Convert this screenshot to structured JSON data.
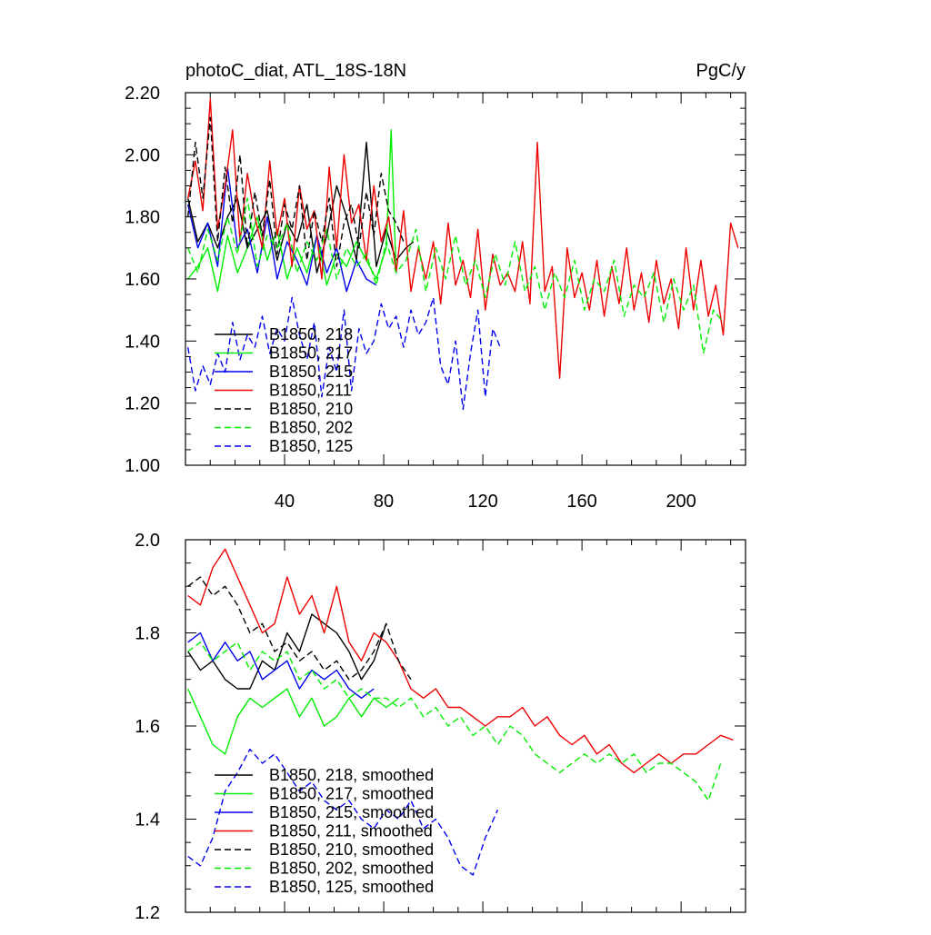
{
  "chart_data": [
    {
      "type": "line",
      "title_left": "photoC_diat, ATL_18S-18N",
      "title_right": "PgC/y",
      "xlim": [
        0,
        226
      ],
      "ylim": [
        1.0,
        2.2
      ],
      "xticks": [
        "40",
        "80",
        "120",
        "160",
        "200"
      ],
      "yticks": [
        "1.00",
        "1.20",
        "1.40",
        "1.60",
        "1.80",
        "2.00",
        "2.20"
      ],
      "legend_position": "lower-left",
      "series": [
        {
          "name": "B1850, 218",
          "color": "#000000",
          "dash": "solid",
          "x": [
            1,
            5,
            9,
            13,
            17,
            21,
            25,
            29,
            33,
            37,
            41,
            45,
            49,
            53,
            57,
            61,
            65,
            69,
            73,
            77,
            81,
            85,
            89,
            92
          ],
          "values": [
            1.86,
            1.72,
            1.78,
            1.7,
            1.8,
            1.86,
            1.7,
            1.76,
            1.82,
            1.66,
            1.78,
            1.72,
            1.84,
            1.62,
            1.74,
            1.9,
            1.8,
            1.66,
            2.04,
            1.64,
            1.76,
            1.66,
            1.7,
            1.72
          ]
        },
        {
          "name": "B1850, 217",
          "color": "#00ee00",
          "dash": "solid",
          "x": [
            1,
            5,
            9,
            13,
            17,
            21,
            25,
            29,
            33,
            37,
            41,
            45,
            49,
            53,
            57,
            61,
            65,
            69,
            73,
            77,
            81,
            83,
            85
          ],
          "values": [
            1.6,
            1.64,
            1.7,
            1.56,
            1.74,
            1.62,
            1.7,
            1.8,
            1.66,
            1.76,
            1.6,
            1.7,
            1.62,
            1.74,
            1.58,
            1.68,
            1.64,
            1.72,
            1.66,
            1.6,
            1.7,
            2.08,
            1.62
          ]
        },
        {
          "name": "B1850, 215",
          "color": "#0000ee",
          "dash": "solid",
          "x": [
            1,
            5,
            9,
            13,
            17,
            21,
            25,
            29,
            33,
            37,
            41,
            45,
            49,
            53,
            57,
            61,
            65,
            69,
            73,
            77
          ],
          "values": [
            1.84,
            1.7,
            1.78,
            1.64,
            1.96,
            1.7,
            1.76,
            1.62,
            1.8,
            1.6,
            1.72,
            1.66,
            1.58,
            1.74,
            1.62,
            1.7,
            1.56,
            1.66,
            1.6,
            1.58
          ]
        },
        {
          "name": "B1850, 211",
          "color": "#ee0000",
          "dash": "solid",
          "x": [
            1,
            4,
            7,
            10,
            13,
            16,
            19,
            22,
            25,
            28,
            31,
            34,
            37,
            40,
            43,
            46,
            49,
            52,
            55,
            58,
            61,
            64,
            67,
            70,
            73,
            76,
            79,
            82,
            85,
            88,
            91,
            94,
            97,
            100,
            103,
            106,
            109,
            112,
            115,
            118,
            121,
            124,
            127,
            130,
            133,
            136,
            139,
            142,
            145,
            148,
            151,
            154,
            157,
            160,
            163,
            166,
            169,
            172,
            175,
            178,
            181,
            184,
            187,
            190,
            193,
            196,
            199,
            202,
            205,
            208,
            211,
            214,
            217,
            220,
            223
          ],
          "values": [
            1.86,
            1.98,
            1.82,
            2.18,
            1.76,
            1.9,
            2.08,
            1.72,
            1.94,
            1.8,
            1.7,
            1.98,
            1.74,
            1.86,
            1.64,
            1.9,
            1.76,
            1.82,
            1.6,
            1.96,
            1.7,
            2.0,
            1.78,
            1.84,
            1.66,
            1.9,
            1.72,
            1.8,
            1.62,
            1.82,
            1.56,
            1.7,
            1.6,
            1.72,
            1.52,
            1.78,
            1.58,
            1.66,
            1.54,
            1.76,
            1.5,
            1.68,
            1.58,
            1.62,
            1.56,
            1.72,
            1.52,
            2.04,
            1.56,
            1.64,
            1.28,
            1.7,
            1.54,
            1.62,
            1.5,
            1.66,
            1.48,
            1.64,
            1.52,
            1.7,
            1.5,
            1.62,
            1.46,
            1.66,
            1.52,
            1.6,
            1.44,
            1.7,
            1.5,
            1.66,
            1.48,
            1.58,
            1.42,
            1.78,
            1.7
          ]
        },
        {
          "name": "B1850, 210",
          "color": "#000000",
          "dash": "dashed",
          "x": [
            1,
            4,
            7,
            10,
            13,
            16,
            19,
            22,
            25,
            28,
            31,
            34,
            37,
            40,
            43,
            46,
            49,
            52,
            55,
            58,
            61,
            64,
            67,
            70,
            73,
            76,
            79,
            82,
            85,
            88
          ],
          "values": [
            1.8,
            2.04,
            1.86,
            2.12,
            1.72,
            1.96,
            1.78,
            2.0,
            1.7,
            1.88,
            1.74,
            1.92,
            1.68,
            1.84,
            1.76,
            1.9,
            1.66,
            1.82,
            1.72,
            1.86,
            1.64,
            1.78,
            1.84,
            1.7,
            1.88,
            1.74,
            1.94,
            1.82,
            1.78,
            1.72
          ]
        },
        {
          "name": "B1850, 202",
          "color": "#00ee00",
          "dash": "dashed",
          "x": [
            1,
            5,
            9,
            13,
            17,
            21,
            25,
            29,
            33,
            37,
            41,
            45,
            49,
            53,
            57,
            61,
            65,
            69,
            73,
            77,
            81,
            85,
            89,
            93,
            97,
            101,
            105,
            109,
            113,
            117,
            121,
            125,
            129,
            133,
            137,
            141,
            145,
            149,
            153,
            157,
            161,
            165,
            169,
            173,
            177,
            181,
            185,
            189,
            193,
            197,
            201,
            205,
            209,
            213,
            217
          ],
          "values": [
            1.7,
            1.62,
            1.76,
            1.66,
            1.8,
            1.68,
            1.86,
            1.64,
            1.74,
            1.7,
            1.78,
            1.62,
            1.72,
            1.66,
            1.76,
            1.6,
            1.7,
            1.64,
            1.68,
            1.58,
            1.72,
            1.62,
            1.66,
            1.76,
            1.56,
            1.7,
            1.6,
            1.74,
            1.58,
            1.66,
            1.54,
            1.68,
            1.58,
            1.72,
            1.56,
            1.64,
            1.5,
            1.62,
            1.54,
            1.66,
            1.5,
            1.6,
            1.56,
            1.66,
            1.48,
            1.58,
            1.54,
            1.62,
            1.46,
            1.6,
            1.5,
            1.58,
            1.36,
            1.5,
            1.46
          ]
        },
        {
          "name": "B1850, 125",
          "color": "#0000ee",
          "dash": "dashed",
          "x": [
            1,
            4,
            7,
            10,
            13,
            16,
            19,
            22,
            25,
            28,
            31,
            34,
            37,
            40,
            43,
            46,
            49,
            52,
            55,
            58,
            61,
            64,
            67,
            70,
            73,
            76,
            79,
            82,
            85,
            88,
            91,
            94,
            97,
            100,
            103,
            106,
            109,
            112,
            115,
            118,
            121,
            124,
            127
          ],
          "values": [
            1.38,
            1.24,
            1.32,
            1.26,
            1.36,
            1.3,
            1.46,
            1.34,
            1.42,
            1.38,
            1.48,
            1.36,
            1.44,
            1.4,
            1.54,
            1.42,
            1.34,
            1.46,
            1.22,
            1.38,
            1.3,
            1.5,
            1.24,
            1.44,
            1.36,
            1.4,
            1.52,
            1.44,
            1.48,
            1.38,
            1.5,
            1.42,
            1.46,
            1.54,
            1.32,
            1.26,
            1.4,
            1.18,
            1.36,
            1.5,
            1.22,
            1.44,
            1.38
          ]
        }
      ]
    },
    {
      "type": "line",
      "xlim": [
        0,
        226
      ],
      "ylim": [
        1.2,
        2.0
      ],
      "yticks": [
        "1.2",
        "1.4",
        "1.6",
        "1.8",
        "2.0"
      ],
      "legend_position": "lower-left",
      "series": [
        {
          "name": "B1850, 218, smoothed",
          "color": "#000000",
          "dash": "solid",
          "x": [
            1,
            6,
            11,
            16,
            21,
            26,
            31,
            36,
            41,
            46,
            51,
            56,
            61,
            66,
            71,
            76,
            81
          ],
          "values": [
            1.76,
            1.72,
            1.74,
            1.7,
            1.68,
            1.68,
            1.74,
            1.72,
            1.8,
            1.76,
            1.84,
            1.82,
            1.8,
            1.76,
            1.7,
            1.74,
            1.82
          ]
        },
        {
          "name": "B1850, 217, smoothed",
          "color": "#00ee00",
          "dash": "solid",
          "x": [
            1,
            6,
            11,
            16,
            21,
            26,
            31,
            36,
            41,
            46,
            51,
            56,
            61,
            66,
            71,
            76,
            81,
            86
          ],
          "values": [
            1.68,
            1.62,
            1.56,
            1.54,
            1.62,
            1.66,
            1.64,
            1.66,
            1.68,
            1.62,
            1.66,
            1.6,
            1.62,
            1.66,
            1.62,
            1.66,
            1.64,
            1.66
          ]
        },
        {
          "name": "B1850, 215, smoothed",
          "color": "#0000ee",
          "dash": "solid",
          "x": [
            1,
            6,
            11,
            16,
            21,
            26,
            31,
            36,
            41,
            46,
            51,
            56,
            61,
            66,
            71,
            76
          ],
          "values": [
            1.78,
            1.8,
            1.74,
            1.78,
            1.74,
            1.76,
            1.7,
            1.72,
            1.74,
            1.68,
            1.72,
            1.7,
            1.72,
            1.68,
            1.66,
            1.68
          ]
        },
        {
          "name": "B1850, 211, smoothed",
          "color": "#ee0000",
          "dash": "solid",
          "x": [
            1,
            6,
            11,
            16,
            21,
            26,
            31,
            36,
            41,
            46,
            51,
            56,
            61,
            66,
            71,
            76,
            81,
            86,
            91,
            96,
            101,
            106,
            111,
            116,
            121,
            126,
            131,
            136,
            141,
            146,
            151,
            156,
            161,
            166,
            171,
            176,
            181,
            186,
            191,
            196,
            201,
            206,
            211,
            216,
            221
          ],
          "values": [
            1.88,
            1.86,
            1.94,
            1.98,
            1.92,
            1.86,
            1.8,
            1.82,
            1.92,
            1.84,
            1.88,
            1.8,
            1.9,
            1.78,
            1.74,
            1.8,
            1.78,
            1.74,
            1.68,
            1.66,
            1.68,
            1.64,
            1.64,
            1.62,
            1.6,
            1.62,
            1.62,
            1.64,
            1.6,
            1.62,
            1.58,
            1.56,
            1.58,
            1.54,
            1.56,
            1.52,
            1.5,
            1.52,
            1.54,
            1.52,
            1.54,
            1.54,
            1.56,
            1.58,
            1.57
          ]
        },
        {
          "name": "B1850, 210, smoothed",
          "color": "#000000",
          "dash": "dashed",
          "x": [
            1,
            6,
            11,
            16,
            21,
            26,
            31,
            36,
            41,
            46,
            51,
            56,
            61,
            66,
            71,
            76,
            81,
            86,
            91
          ],
          "values": [
            1.9,
            1.92,
            1.88,
            1.9,
            1.86,
            1.8,
            1.82,
            1.76,
            1.78,
            1.74,
            1.76,
            1.72,
            1.74,
            1.7,
            1.72,
            1.76,
            1.82,
            1.74,
            1.7
          ]
        },
        {
          "name": "B1850, 202, smoothed",
          "color": "#00ee00",
          "dash": "dashed",
          "x": [
            1,
            6,
            11,
            16,
            21,
            26,
            31,
            36,
            41,
            46,
            51,
            56,
            61,
            66,
            71,
            76,
            81,
            86,
            91,
            96,
            101,
            106,
            111,
            116,
            121,
            126,
            131,
            136,
            141,
            146,
            151,
            156,
            161,
            166,
            171,
            176,
            181,
            186,
            191,
            196,
            201,
            206,
            211,
            216
          ],
          "values": [
            1.76,
            1.78,
            1.74,
            1.76,
            1.78,
            1.72,
            1.76,
            1.74,
            1.76,
            1.7,
            1.72,
            1.68,
            1.7,
            1.66,
            1.68,
            1.66,
            1.66,
            1.64,
            1.66,
            1.62,
            1.64,
            1.6,
            1.62,
            1.58,
            1.6,
            1.56,
            1.6,
            1.58,
            1.54,
            1.52,
            1.5,
            1.52,
            1.54,
            1.52,
            1.54,
            1.52,
            1.54,
            1.5,
            1.52,
            1.52,
            1.5,
            1.48,
            1.44,
            1.52
          ]
        },
        {
          "name": "B1850, 125, smoothed",
          "color": "#0000ee",
          "dash": "dashed",
          "x": [
            1,
            6,
            11,
            16,
            21,
            26,
            31,
            36,
            41,
            46,
            51,
            56,
            61,
            66,
            71,
            76,
            81,
            86,
            91,
            96,
            101,
            106,
            111,
            116,
            121,
            126
          ],
          "values": [
            1.32,
            1.3,
            1.36,
            1.46,
            1.5,
            1.55,
            1.52,
            1.54,
            1.5,
            1.46,
            1.48,
            1.44,
            1.42,
            1.44,
            1.4,
            1.38,
            1.42,
            1.4,
            1.44,
            1.38,
            1.4,
            1.36,
            1.3,
            1.28,
            1.36,
            1.42
          ]
        }
      ]
    }
  ]
}
